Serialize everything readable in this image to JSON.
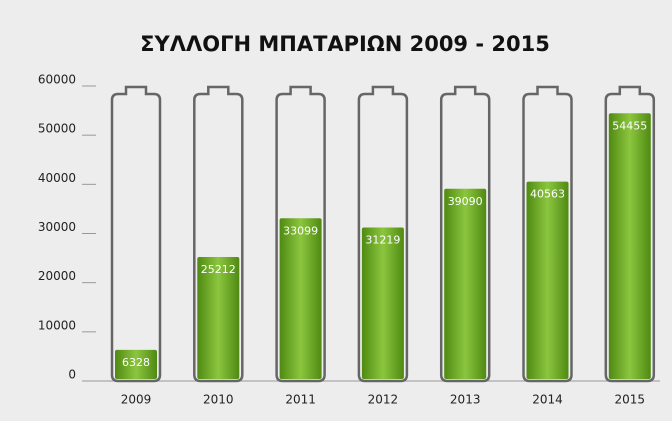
{
  "chart_data": {
    "type": "battery-bar",
    "title": "ΣΥΛΛΟΓΗ ΜΠΑΤΑΡΙΩΝ 2009 - 2015",
    "categories": [
      "2009",
      "2010",
      "2011",
      "2012",
      "2013",
      "2014",
      "2015"
    ],
    "values": [
      6328,
      25212,
      33099,
      31219,
      39090,
      40563,
      54455
    ],
    "color": "#6fae1c",
    "ylim": [
      0,
      60000
    ],
    "yticks": [
      0,
      10000,
      20000,
      30000,
      40000,
      50000,
      60000
    ]
  }
}
